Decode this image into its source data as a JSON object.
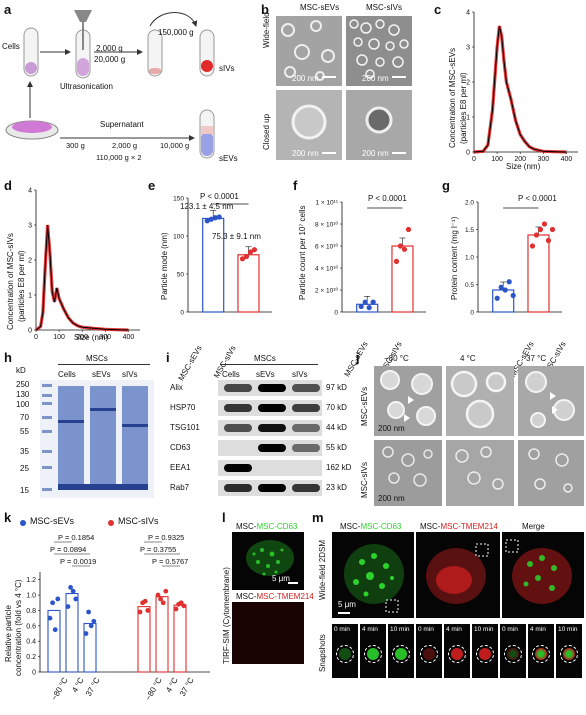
{
  "panel_letters": [
    "a",
    "b",
    "c",
    "d",
    "e",
    "f",
    "g",
    "h",
    "i",
    "j",
    "k",
    "l",
    "m"
  ],
  "a": {
    "cells": "Cells",
    "ultrasonication": "Ultrasonication",
    "spin1": "2,000 g",
    "spin2": "20,000 g",
    "spin3": "150,000 g",
    "product1": "sIVs",
    "supernatant": "Supernatant",
    "s300": "300 g",
    "s2000": "2,000 g",
    "s10000": "10,000 g",
    "s110000": "110,000 g × 2",
    "product2": "sEVs"
  },
  "b": {
    "col1": "MSC-sEVs",
    "col2": "MSC-sIVs",
    "row1": "Wide-field",
    "row2": "Closed up",
    "scale": "200 nm"
  },
  "c": {
    "ylabel_l1": "Concentration of MSC-sEVs",
    "ylabel_l2": "(particles E8 per ml)",
    "xlabel": "Size (nm)",
    "yticks": [
      "0",
      "1",
      "2",
      "3",
      "4"
    ],
    "xticks": [
      "0",
      "100",
      "200",
      "300",
      "400"
    ]
  },
  "d": {
    "ylabel_l1": "Concentration of MSC-sIVs",
    "ylabel_l2": "(particles E8 per ml)",
    "xlabel": "Size (nm)",
    "yticks": [
      "0",
      "1",
      "2",
      "3",
      "4"
    ],
    "xticks": [
      "0",
      "100",
      "200",
      "300",
      "400"
    ]
  },
  "e": {
    "ylabel": "Particle mode (nm)",
    "p": "P < 0.0001",
    "v1": "123.1 ± 4.5 nm",
    "v2": "75.3 ± 9.1 nm",
    "yticks": [
      "0",
      "50",
      "100",
      "150"
    ],
    "cats": [
      "MSC-sEVs",
      "MSC-sIVs"
    ]
  },
  "f": {
    "ylabel": "Particle count per 10⁷ cells",
    "p": "P < 0.0001",
    "yticks": [
      "0",
      "2 × 10¹⁰",
      "4 × 10¹⁰",
      "6 × 10¹⁰",
      "8 × 10¹⁰",
      "1 × 10¹¹"
    ],
    "cats": [
      "MSC-sEVs",
      "MSC-sIVs"
    ]
  },
  "g": {
    "ylabel": "Protein content (mg l⁻¹)",
    "p": "P < 0.0001",
    "yticks": [
      "0",
      "0.5",
      "1.0",
      "1.5",
      "2.0"
    ],
    "cats": [
      "MSC-sEVs",
      "MSC-sIVs"
    ]
  },
  "h": {
    "kd": "kD",
    "group": "MSCs",
    "lanes": [
      "Cells",
      "sEVs",
      "sIVs"
    ],
    "markers": [
      "250",
      "130",
      "100",
      "70",
      "55",
      "35",
      "25",
      "15"
    ]
  },
  "i": {
    "group": "MSCs",
    "lanes": [
      "Cells",
      "sEVs",
      "sIVs"
    ],
    "rows": [
      {
        "name": "Alix",
        "kd": "97 kD"
      },
      {
        "name": "HSP70",
        "kd": "70 kD"
      },
      {
        "name": "TSG101",
        "kd": "44 kD"
      },
      {
        "name": "CD63",
        "kd": "55 kD"
      },
      {
        "name": "EEA1",
        "kd": "162 kD"
      },
      {
        "name": "Rab7",
        "kd": "23 kD"
      }
    ]
  },
  "j": {
    "cols": [
      "−80 °C",
      "4 °C",
      "37 °C"
    ],
    "rows": [
      "MSC-sEVs",
      "MSC-sIVs"
    ],
    "scale": "200 nm"
  },
  "k": {
    "legend1": "MSC-sEVs",
    "legend2": "MSC-sIVs",
    "ylabel_l1": "Relative particle",
    "ylabel_l2": "concentration (fold vs 4 °C)",
    "pL": [
      "P = 0.1854",
      "P = 0.0894",
      "P = 0.0019"
    ],
    "pR": [
      "P = 0.9325",
      "P = 0.3755",
      "P = 0.5767"
    ],
    "yticks": [
      "0",
      "0.2",
      "0.4",
      "0.6",
      "0.8",
      "1.0",
      "1.2"
    ],
    "cats": [
      "−80 °C",
      "4 °C",
      "37 °C"
    ]
  },
  "l": {
    "title1": "MSC-CD63",
    "title2": "MSC-TMEM214",
    "side": "TIRF-SIM (Cytomembrane)",
    "scale": "5 μm"
  },
  "m": {
    "h1": "MSC-CD63",
    "h2": "MSC-TMEM214",
    "h3": "Merge",
    "side1": "Wide-field 2DSM",
    "side2": "Snapshots",
    "scale": "5 μm",
    "times": [
      "0 min",
      "4 min",
      "10 min",
      "0 min",
      "4 min",
      "10 min",
      "0 min",
      "4 min",
      "10 min"
    ]
  },
  "colors": {
    "sev": "#2b55c9",
    "siv": "#e03030",
    "trace": "#e01818",
    "green": "#2cd32c",
    "red": "#d42020"
  },
  "chart_data": [
    {
      "type": "line",
      "panel": "c",
      "series": [
        {
          "values_x": [
            0,
            40,
            60,
            80,
            100,
            110,
            120,
            130,
            140,
            160,
            180,
            200,
            220,
            240,
            260,
            300,
            350,
            400
          ],
          "values_y": [
            0,
            0.02,
            0.2,
            1.2,
            3.0,
            3.6,
            3.3,
            2.6,
            2.0,
            1.5,
            0.9,
            0.5,
            0.3,
            0.15,
            0.08,
            0.02,
            0.01,
            0
          ]
        }
      ],
      "xlim": [
        0,
        450
      ],
      "ylim": [
        0,
        4
      ]
    },
    {
      "type": "line",
      "panel": "d",
      "series": [
        {
          "values_x": [
            0,
            20,
            30,
            40,
            50,
            60,
            70,
            80,
            90,
            100,
            120,
            140,
            160,
            180,
            200,
            250,
            300,
            350,
            400
          ],
          "values_y": [
            0,
            0.1,
            0.5,
            1.8,
            3.0,
            2.2,
            1.1,
            0.8,
            1.2,
            0.9,
            0.6,
            0.35,
            0.2,
            0.12,
            0.08,
            0.05,
            0.02,
            0.01,
            0
          ]
        }
      ],
      "xlim": [
        0,
        450
      ],
      "ylim": [
        0,
        4
      ]
    },
    {
      "type": "bar",
      "panel": "e",
      "categories": [
        "MSC-sEVs",
        "MSC-sIVs"
      ],
      "values": [
        123.1,
        75.3
      ],
      "ylim": [
        0,
        150
      ]
    },
    {
      "type": "bar",
      "panel": "f",
      "categories": [
        "MSC-sEVs",
        "MSC-sIVs"
      ],
      "values": [
        0.7,
        6.0
      ],
      "unit": "× 10¹⁰",
      "ylim": [
        0,
        10
      ]
    },
    {
      "type": "bar",
      "panel": "g",
      "categories": [
        "MSC-sEVs",
        "MSC-sIVs"
      ],
      "values": [
        0.4,
        1.4
      ],
      "ylim": [
        0,
        2
      ]
    },
    {
      "type": "bar",
      "panel": "k",
      "categories": [
        "−80 °C",
        "4 °C",
        "37 °C"
      ],
      "series": [
        {
          "name": "MSC-sEVs",
          "values": [
            0.8,
            1.02,
            0.63
          ]
        },
        {
          "name": "MSC-sIVs",
          "values": [
            0.85,
            0.98,
            0.87
          ]
        }
      ],
      "ylim": [
        0,
        1.3
      ]
    }
  ]
}
